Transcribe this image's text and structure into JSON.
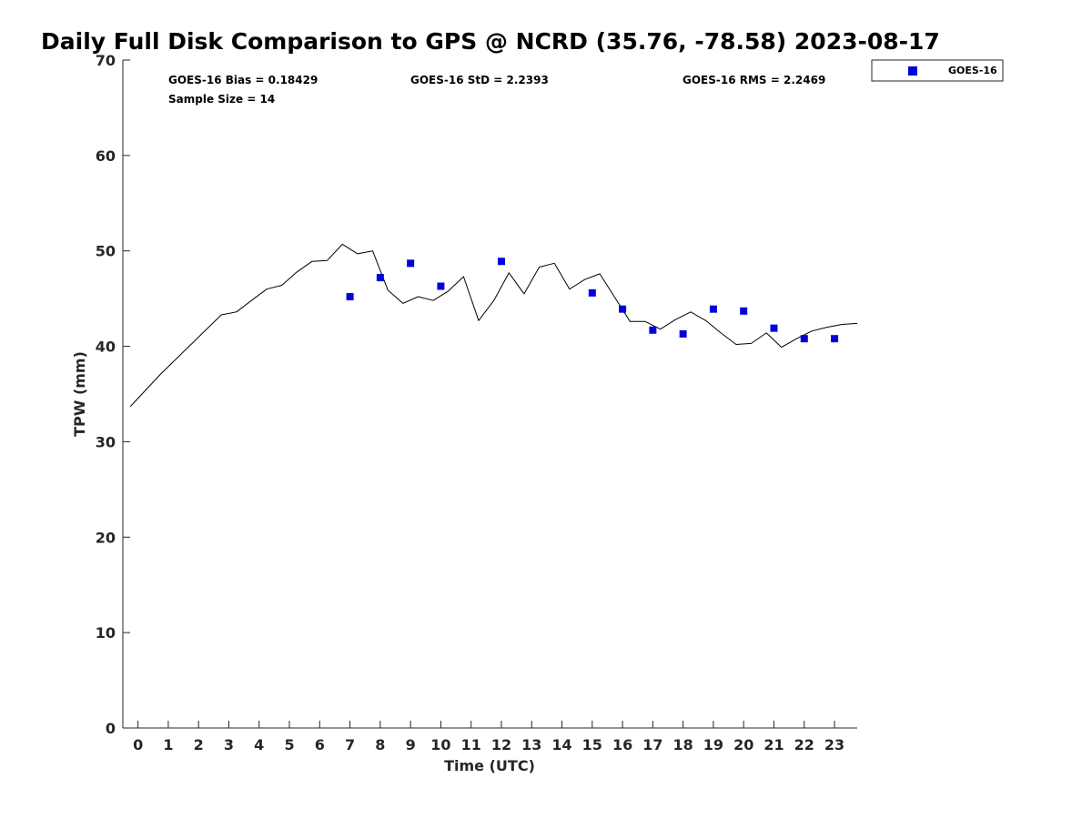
{
  "chart_data": {
    "type": "line+scatter",
    "title": "Daily Full Disk Comparison to GPS @ NCRD (35.76, -78.58) 2023-08-17",
    "xlabel": "Time (UTC)",
    "ylabel": "TPW (mm)",
    "xlim": [
      -0.5,
      23.75
    ],
    "ylim": [
      0,
      70
    ],
    "x_ticks": [
      0,
      1,
      2,
      3,
      4,
      5,
      6,
      7,
      8,
      9,
      10,
      11,
      12,
      13,
      14,
      15,
      16,
      17,
      18,
      19,
      20,
      21,
      22,
      23
    ],
    "y_ticks": [
      0,
      10,
      20,
      30,
      40,
      50,
      60,
      70
    ],
    "grid": false,
    "legend_position": "top-right (outside plot)",
    "stats": {
      "bias": "GOES-16 Bias = 0.18429",
      "std": "GOES-16 StD = 2.2393",
      "rms": "GOES-16 RMS = 2.2469",
      "sample": "Sample Size = 14"
    },
    "series": [
      {
        "name": "GPS",
        "kind": "line",
        "color": "#000000",
        "x": [
          -0.25,
          0.75,
          1.75,
          2.75,
          3.25,
          3.75,
          4.25,
          4.75,
          5.25,
          5.75,
          6.25,
          6.75,
          7.25,
          7.75,
          8.25,
          8.75,
          9.25,
          9.75,
          10.25,
          10.75,
          11.25,
          11.75,
          12.25,
          12.75,
          13.25,
          13.75,
          14.25,
          14.75,
          15.25,
          15.75,
          16.25,
          16.75,
          17.25,
          17.75,
          18.25,
          18.75,
          19.25,
          19.75,
          20.25,
          20.75,
          21.25,
          21.75,
          22.25,
          22.75,
          23.25,
          23.75
        ],
        "values": [
          33.7,
          37.1,
          40.2,
          43.3,
          43.6,
          44.8,
          46.0,
          46.4,
          47.8,
          48.9,
          49.0,
          50.7,
          49.7,
          50.0,
          45.9,
          44.5,
          45.2,
          44.8,
          45.8,
          47.3,
          42.7,
          44.8,
          47.7,
          45.5,
          48.3,
          48.7,
          46.0,
          47.0,
          47.6,
          45.1,
          42.6,
          42.6,
          41.8,
          42.8,
          43.6,
          42.7,
          41.4,
          40.2,
          40.3,
          41.4,
          39.9,
          40.8,
          41.6,
          42.0,
          42.3,
          42.4
        ]
      },
      {
        "name": "GOES-16",
        "kind": "scatter",
        "color": "#0000dd",
        "x": [
          7,
          8,
          9,
          10,
          12,
          15,
          16,
          17,
          18,
          19,
          20,
          21,
          22,
          23
        ],
        "values": [
          45.2,
          47.2,
          48.7,
          46.3,
          48.9,
          45.6,
          43.9,
          41.7,
          41.3,
          43.9,
          43.7,
          41.9,
          40.8,
          40.8
        ]
      }
    ],
    "legend": [
      {
        "label": "GOES-16",
        "color": "#0000dd"
      }
    ]
  }
}
